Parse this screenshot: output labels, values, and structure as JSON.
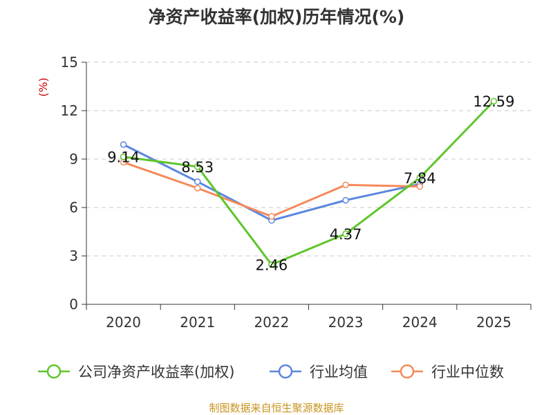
{
  "chart_data": {
    "type": "line",
    "title": "净资产收益率(加权)历年情况(%)",
    "ylabel": "(%)",
    "xlabel": "",
    "categories": [
      "2020",
      "2021",
      "2022",
      "2023",
      "2024",
      "2025"
    ],
    "ylim": [
      0,
      15
    ],
    "yticks": [
      0,
      3,
      6,
      9,
      12,
      15
    ],
    "grid": true,
    "legend_position": "bottom",
    "series": [
      {
        "name": "公司净资产收益率(加权)",
        "color": "#5ec52a",
        "values": [
          9.14,
          8.53,
          2.46,
          4.37,
          7.84,
          12.59
        ],
        "labels": [
          "9.14",
          "8.53",
          "2.46",
          "4.37",
          "7.84",
          "12.59"
        ]
      },
      {
        "name": "行业均值",
        "color": "#5b86de",
        "values": [
          9.9,
          7.6,
          5.2,
          6.45,
          7.45,
          null
        ]
      },
      {
        "name": "行业中位数",
        "color": "#f5895a",
        "values": [
          8.8,
          7.2,
          5.45,
          7.4,
          7.3,
          null
        ]
      }
    ]
  },
  "source": "制图数据来自恒生聚源数据库"
}
